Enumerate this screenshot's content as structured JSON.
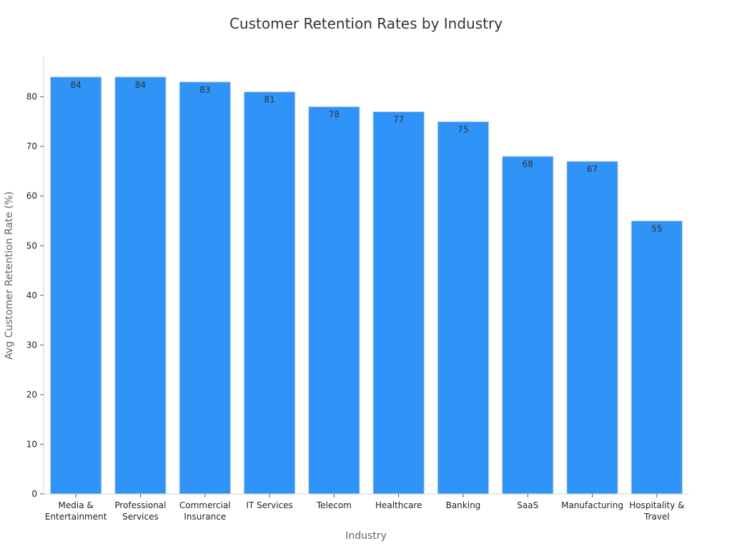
{
  "chart_data": {
    "type": "bar",
    "title": "Customer Retention Rates by Industry",
    "xlabel": "Industry",
    "ylabel": "Avg Customer Retention Rate (%)",
    "categories": [
      [
        "Media &",
        "Entertainment"
      ],
      [
        "Professional",
        "Services"
      ],
      [
        "Commercial",
        "Insurance"
      ],
      [
        "IT Services"
      ],
      [
        "Telecom"
      ],
      [
        "Healthcare"
      ],
      [
        "Banking"
      ],
      [
        "SaaS"
      ],
      [
        "Manufacturing"
      ],
      [
        "Hospitality &",
        "Travel"
      ]
    ],
    "values": [
      84,
      84,
      83,
      81,
      78,
      77,
      75,
      68,
      67,
      55
    ],
    "data_labels": [
      "84",
      "84",
      "83",
      "81",
      "78",
      "77",
      "75",
      "68",
      "67",
      "55"
    ],
    "ylim": [
      0,
      88
    ],
    "yticks": [
      0,
      10,
      20,
      30,
      40,
      50,
      60,
      70,
      80
    ],
    "grid": false,
    "legend": "none",
    "bar_color": "#2f93f8",
    "bar_edge_color": "#c9d3dc",
    "axis_color": "#d0d0d0",
    "title_color": "#333333",
    "label_color": "#666666",
    "tick_color": "#222222",
    "data_label_color": "#333333"
  }
}
